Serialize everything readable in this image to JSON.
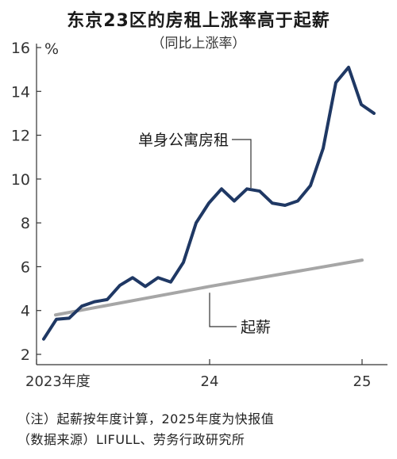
{
  "title": "东京23区的房租上涨率高于起薪",
  "subtitle": "（同比上涨率）",
  "notes": [
    "（注）起薪按年度计算，2025年度为快报值",
    "（数据来源）LIFULL、劳务行政研究所"
  ],
  "chart_data": {
    "type": "line",
    "y_unit": "%",
    "ylim": [
      2,
      16
    ],
    "y_ticks": [
      2,
      4,
      6,
      8,
      10,
      12,
      14,
      16
    ],
    "x_tick_labels": [
      "2023年度",
      "24",
      "25"
    ],
    "series": [
      {
        "name": "单身公寓房租",
        "color": "#1f3864",
        "values": [
          2.7,
          3.6,
          3.65,
          4.2,
          4.4,
          4.5,
          5.15,
          5.5,
          5.1,
          5.5,
          5.3,
          6.2,
          8.0,
          8.9,
          9.55,
          9.0,
          9.55,
          9.45,
          8.9,
          8.8,
          9.0,
          9.7,
          11.4,
          14.4,
          15.1,
          13.4,
          13.0
        ]
      },
      {
        "name": "起薪",
        "color": "#a6a6a6",
        "values": [
          3.8,
          5.1,
          6.3
        ]
      }
    ],
    "annotations": [
      {
        "series": "单身公寓房租",
        "text": "单身公寓房租"
      },
      {
        "series": "起薪",
        "text": "起薪"
      }
    ],
    "grid": false
  }
}
